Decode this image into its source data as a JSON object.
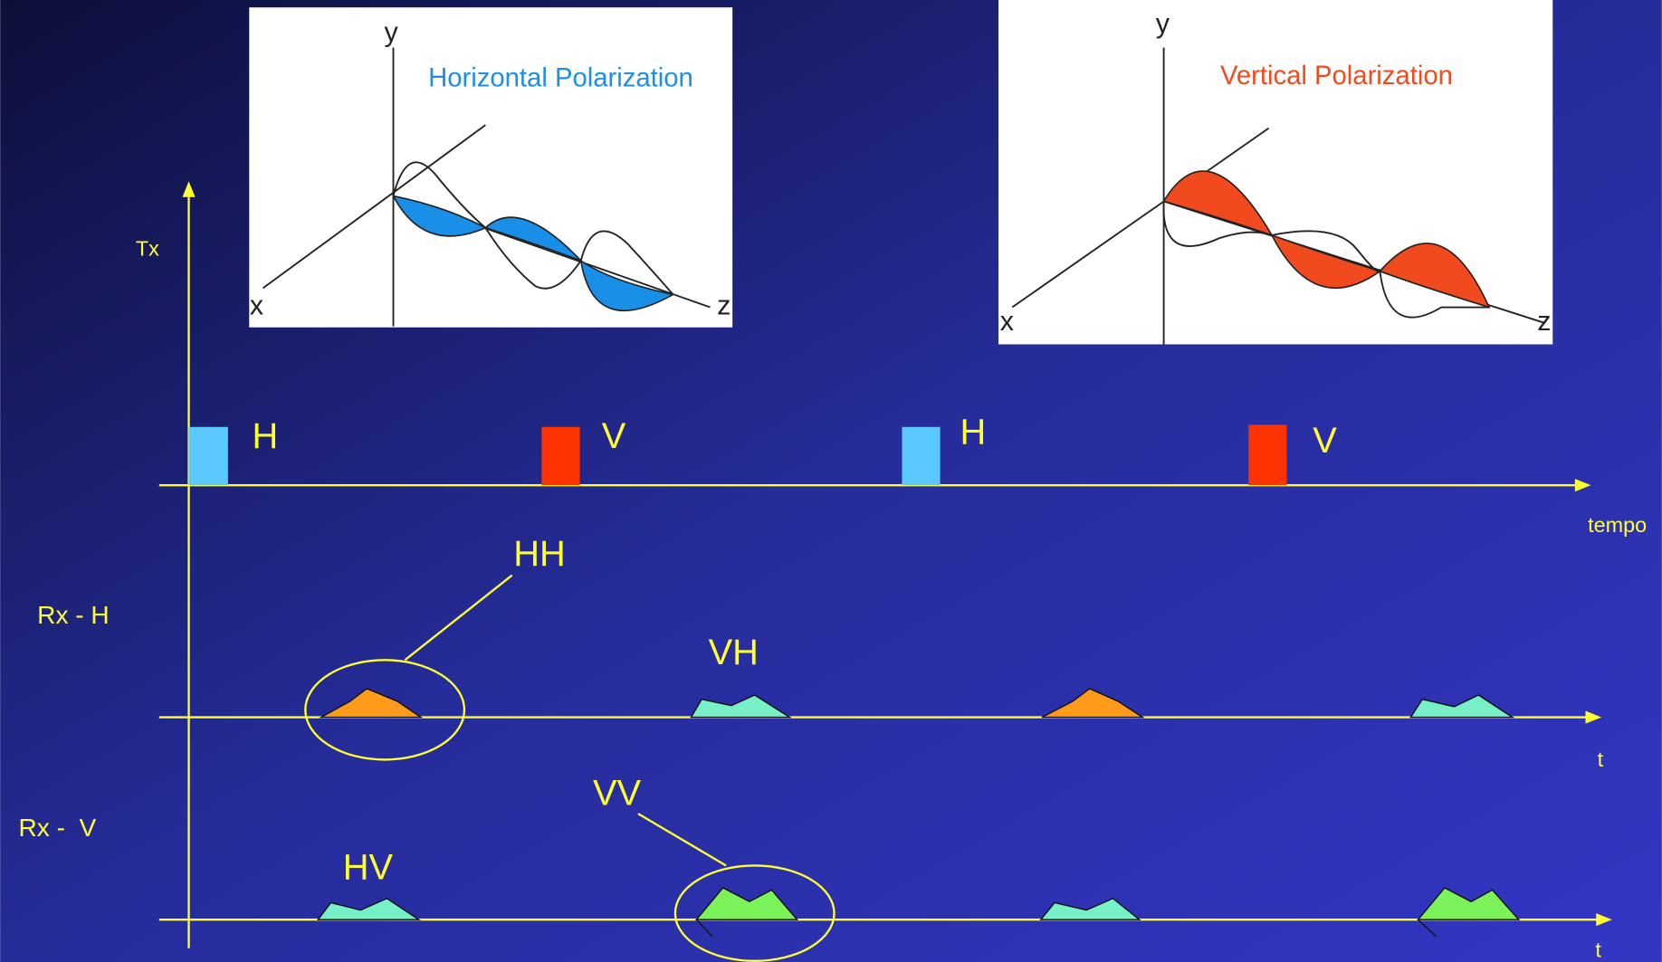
{
  "insets": [
    {
      "title": "Horizontal Polarization",
      "x": "x",
      "y": "y",
      "z": "z"
    },
    {
      "title": "Vertical Polarization",
      "x": "x",
      "y": "y",
      "z": "z"
    }
  ],
  "rows": {
    "tx": "Tx",
    "rx_h": "Rx - H",
    "rx_v": "Rx -  V"
  },
  "axis_labels": [
    "tempo",
    "t",
    "t"
  ],
  "pulses": [
    "H",
    "V",
    "H",
    "V"
  ],
  "echoes": {
    "hh": "HH",
    "vh": "VH",
    "hv": "HV",
    "vv": "VV"
  }
}
